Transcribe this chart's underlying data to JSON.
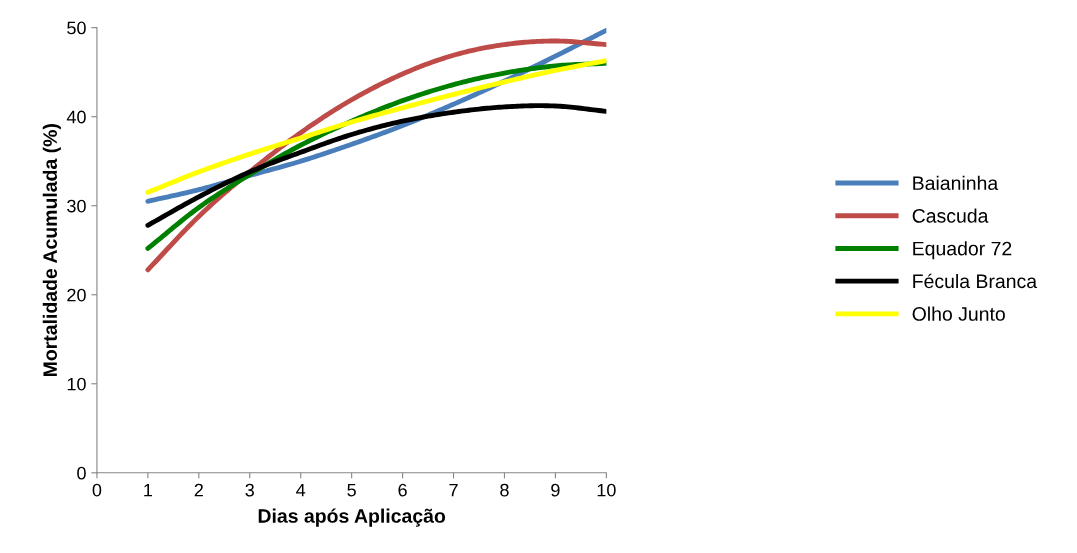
{
  "chart_data": {
    "type": "line",
    "xlabel": "Dias após Aplicação",
    "ylabel": "Mortalidade Acumulada (%)",
    "x": [
      1,
      2,
      3,
      4,
      5,
      6,
      7,
      8,
      9,
      10
    ],
    "xlim": [
      0,
      10
    ],
    "xticks": [
      0,
      1,
      2,
      3,
      4,
      5,
      6,
      7,
      8,
      9,
      10
    ],
    "ylim": [
      0,
      50
    ],
    "yticks": [
      0,
      10,
      20,
      30,
      40,
      50
    ],
    "grid": false,
    "legend": "right",
    "marker": "none",
    "line_style": "solid",
    "series": [
      {
        "name": "Baianinha",
        "color": "#4a7ebb",
        "values": [
          30.5,
          31.8,
          33.4,
          35.0,
          36.9,
          39.0,
          41.4,
          44.0,
          46.8,
          49.7
        ]
      },
      {
        "name": "Cascuda",
        "color": "#be4b48",
        "values": [
          22.8,
          28.8,
          33.8,
          38.2,
          41.9,
          44.8,
          46.9,
          48.1,
          48.5,
          48.1
        ]
      },
      {
        "name": "Equador 72",
        "color": "#008000",
        "values": [
          25.2,
          29.8,
          33.5,
          36.8,
          39.5,
          41.8,
          43.6,
          44.9,
          45.7,
          46.0
        ]
      },
      {
        "name": "Fécula Branca",
        "color": "#000000",
        "values": [
          27.8,
          31.0,
          33.8,
          36.0,
          38.0,
          39.5,
          40.5,
          41.1,
          41.2,
          40.6
        ]
      },
      {
        "name": "Olho Junto",
        "color": "#ffff00",
        "values": [
          31.5,
          33.8,
          35.8,
          37.6,
          39.4,
          41.0,
          42.5,
          43.9,
          45.2,
          46.3
        ]
      }
    ]
  }
}
